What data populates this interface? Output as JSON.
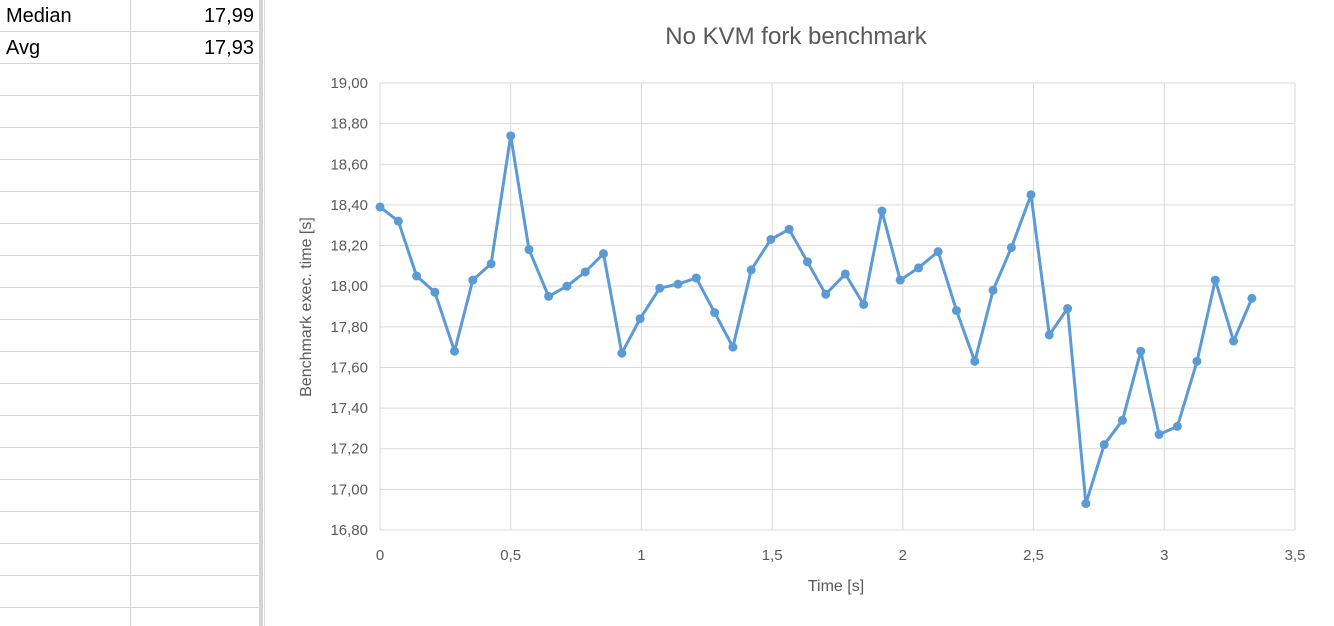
{
  "sheet": {
    "rows": [
      {
        "label": "Median",
        "value": "17,99"
      },
      {
        "label": "Avg",
        "value": "17,93"
      }
    ],
    "empty_rows": 18
  },
  "chart_data": {
    "type": "line",
    "title": "No KVM fork benchmark",
    "xlabel": "Time [s]",
    "ylabel": "Benchmark exec. time [s]",
    "xlim": [
      0,
      3.5
    ],
    "ylim": [
      16.8,
      19.0
    ],
    "x_ticks": [
      "0",
      "0,5",
      "1",
      "1,5",
      "2",
      "2,5",
      "3",
      "3,5"
    ],
    "y_ticks": [
      "16,80",
      "17,00",
      "17,20",
      "17,40",
      "17,60",
      "17,80",
      "18,00",
      "18,20",
      "18,40",
      "18,60",
      "18,80",
      "19,00"
    ],
    "grid": true,
    "line_color": "#5b9bd5",
    "series": [
      {
        "x": [
          0,
          0.07,
          0.14,
          0.21,
          0.285,
          0.355,
          0.425,
          0.5,
          0.57,
          0.645,
          0.715,
          0.785,
          0.855,
          0.925,
          0.995,
          1.07,
          1.14,
          1.21,
          1.28,
          1.35,
          1.42,
          1.495,
          1.565,
          1.635,
          1.705,
          1.78,
          1.85,
          1.92,
          1.99,
          2.06,
          2.135,
          2.205,
          2.275,
          2.345,
          2.415,
          2.49,
          2.56,
          2.63,
          2.7,
          2.77,
          2.84,
          2.91,
          2.98,
          3.05,
          3.125,
          3.195,
          3.265,
          3.335
        ],
        "values": [
          18.39,
          18.32,
          18.05,
          17.97,
          17.68,
          18.03,
          18.11,
          18.74,
          18.18,
          17.95,
          18.0,
          18.07,
          18.16,
          17.67,
          17.84,
          17.99,
          18.01,
          18.04,
          17.87,
          17.7,
          18.08,
          18.23,
          18.28,
          18.12,
          17.96,
          18.06,
          17.91,
          18.37,
          18.03,
          18.09,
          18.17,
          17.88,
          17.63,
          17.98,
          18.19,
          18.45,
          17.76,
          17.89,
          16.93,
          17.22,
          17.34,
          17.68,
          17.27,
          17.31,
          17.63,
          18.03,
          17.73,
          17.94
        ]
      }
    ]
  }
}
